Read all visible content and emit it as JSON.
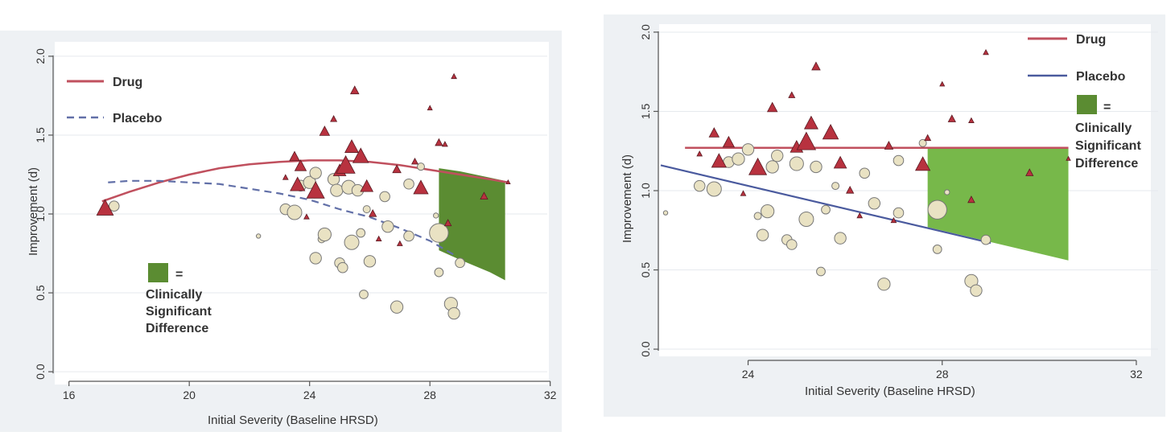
{
  "colors": {
    "drug": "#c0505e",
    "drug_marker": "#b8323f",
    "placebo_left": "#6270a8",
    "placebo_right": "#4a5a9e",
    "placebo_marker": "#e9e2c3",
    "sig_left": "#5b8c32",
    "sig_right": "#77b84a",
    "outer_bg": "#eef1f4",
    "plot_bg": "#ffffff"
  },
  "chart_data": [
    {
      "type": "scatter",
      "title": "",
      "xlabel": "Initial Severity (Baseline HRSD)",
      "ylabel": "Improvement (d)",
      "xlim": [
        15.5,
        31.5
      ],
      "ylim": [
        -0.02,
        2.02
      ],
      "xticks": [
        "16",
        "20",
        "24",
        "28",
        "32"
      ],
      "yticks": [
        "0.0",
        "0.5",
        "1.0",
        "1.5",
        "2.0"
      ],
      "grid": "horizontal",
      "legend": {
        "placement": "top-left",
        "drug_label": "Drug",
        "placebo_label": "Placebo",
        "sig_eq": "=",
        "sig_line1": "Clinically",
        "sig_line2": "Significant",
        "sig_line3": "Difference"
      },
      "drug_line": [
        [
          17.1,
          1.08
        ],
        [
          18,
          1.14
        ],
        [
          19,
          1.2
        ],
        [
          20,
          1.25
        ],
        [
          21,
          1.29
        ],
        [
          22,
          1.315
        ],
        [
          23,
          1.33
        ],
        [
          24,
          1.34
        ],
        [
          25,
          1.34
        ],
        [
          26,
          1.33
        ],
        [
          27,
          1.31
        ],
        [
          28,
          1.28
        ],
        [
          29,
          1.25
        ],
        [
          30,
          1.22
        ],
        [
          30.6,
          1.2
        ]
      ],
      "placebo_line": [
        [
          17.3,
          1.2
        ],
        [
          18,
          1.21
        ],
        [
          19,
          1.21
        ],
        [
          20,
          1.2
        ],
        [
          21,
          1.19
        ],
        [
          22,
          1.16
        ],
        [
          23,
          1.13
        ],
        [
          24,
          1.09
        ],
        [
          25,
          1.03
        ],
        [
          26,
          0.98
        ],
        [
          27,
          0.91
        ],
        [
          28,
          0.83
        ],
        [
          28.9,
          0.73
        ]
      ],
      "sig_region": [
        [
          28.3,
          1.29
        ],
        [
          29,
          1.27
        ],
        [
          30,
          1.23
        ],
        [
          30.5,
          1.21
        ],
        [
          30.5,
          0.58
        ],
        [
          30,
          0.63
        ],
        [
          29,
          0.71
        ],
        [
          28.3,
          0.77
        ]
      ],
      "drug_points": [
        {
          "x": 17.2,
          "y": 1.03,
          "s": 3.2
        },
        {
          "x": 23.2,
          "y": 1.23,
          "s": 1.0
        },
        {
          "x": 23.5,
          "y": 1.36,
          "s": 1.9
        },
        {
          "x": 23.7,
          "y": 1.3,
          "s": 2.2
        },
        {
          "x": 23.6,
          "y": 1.18,
          "s": 2.8
        },
        {
          "x": 23.9,
          "y": 0.98,
          "s": 1.0
        },
        {
          "x": 24.2,
          "y": 1.14,
          "s": 3.4
        },
        {
          "x": 24.5,
          "y": 1.52,
          "s": 1.9
        },
        {
          "x": 24.8,
          "y": 1.6,
          "s": 1.2
        },
        {
          "x": 25.0,
          "y": 1.27,
          "s": 2.4
        },
        {
          "x": 25.2,
          "y": 1.3,
          "s": 3.6
        },
        {
          "x": 25.4,
          "y": 1.42,
          "s": 2.6
        },
        {
          "x": 25.7,
          "y": 1.36,
          "s": 3.0
        },
        {
          "x": 25.9,
          "y": 1.17,
          "s": 2.4
        },
        {
          "x": 25.5,
          "y": 1.78,
          "s": 1.6
        },
        {
          "x": 26.3,
          "y": 0.84,
          "s": 1.0
        },
        {
          "x": 26.1,
          "y": 1.0,
          "s": 1.4
        },
        {
          "x": 26.9,
          "y": 1.28,
          "s": 1.6
        },
        {
          "x": 27.0,
          "y": 0.81,
          "s": 1.0
        },
        {
          "x": 27.5,
          "y": 1.33,
          "s": 1.2
        },
        {
          "x": 27.7,
          "y": 1.16,
          "s": 2.8
        },
        {
          "x": 28.0,
          "y": 1.67,
          "s": 0.9
        },
        {
          "x": 28.3,
          "y": 1.45,
          "s": 1.4
        },
        {
          "x": 28.5,
          "y": 1.44,
          "s": 1.0
        },
        {
          "x": 28.8,
          "y": 1.87,
          "s": 1.0
        },
        {
          "x": 28.6,
          "y": 0.94,
          "s": 1.3
        },
        {
          "x": 29.8,
          "y": 1.11,
          "s": 1.4
        },
        {
          "x": 30.6,
          "y": 1.2,
          "s": 0.8
        }
      ],
      "placebo_points": [
        {
          "x": 17.5,
          "y": 1.05,
          "s": 1.4
        },
        {
          "x": 22.3,
          "y": 0.86,
          "s": 0.6
        },
        {
          "x": 23.2,
          "y": 1.03,
          "s": 1.5
        },
        {
          "x": 23.5,
          "y": 1.01,
          "s": 2.0
        },
        {
          "x": 23.7,
          "y": 1.18,
          "s": 1.5
        },
        {
          "x": 24.0,
          "y": 1.2,
          "s": 1.7
        },
        {
          "x": 24.2,
          "y": 1.26,
          "s": 1.6
        },
        {
          "x": 24.4,
          "y": 0.84,
          "s": 1.0
        },
        {
          "x": 24.5,
          "y": 0.87,
          "s": 1.8
        },
        {
          "x": 24.2,
          "y": 0.72,
          "s": 1.6
        },
        {
          "x": 24.8,
          "y": 1.22,
          "s": 1.6
        },
        {
          "x": 24.9,
          "y": 1.15,
          "s": 1.7
        },
        {
          "x": 25.0,
          "y": 0.69,
          "s": 1.4
        },
        {
          "x": 25.1,
          "y": 0.66,
          "s": 1.4
        },
        {
          "x": 25.3,
          "y": 1.17,
          "s": 1.9
        },
        {
          "x": 25.4,
          "y": 0.82,
          "s": 2.0
        },
        {
          "x": 25.6,
          "y": 1.15,
          "s": 1.6
        },
        {
          "x": 25.7,
          "y": 0.88,
          "s": 1.2
        },
        {
          "x": 25.9,
          "y": 1.03,
          "s": 1.0
        },
        {
          "x": 26.0,
          "y": 0.7,
          "s": 1.6
        },
        {
          "x": 25.8,
          "y": 0.49,
          "s": 1.2
        },
        {
          "x": 26.5,
          "y": 1.11,
          "s": 1.4
        },
        {
          "x": 26.6,
          "y": 0.92,
          "s": 1.6
        },
        {
          "x": 27.3,
          "y": 0.86,
          "s": 1.4
        },
        {
          "x": 26.9,
          "y": 0.41,
          "s": 1.7
        },
        {
          "x": 27.3,
          "y": 1.19,
          "s": 1.4
        },
        {
          "x": 28.2,
          "y": 0.99,
          "s": 0.7
        },
        {
          "x": 28.3,
          "y": 0.88,
          "s": 2.6
        },
        {
          "x": 28.3,
          "y": 0.63,
          "s": 1.2
        },
        {
          "x": 28.7,
          "y": 0.43,
          "s": 1.8
        },
        {
          "x": 28.8,
          "y": 0.37,
          "s": 1.6
        },
        {
          "x": 29.0,
          "y": 0.69,
          "s": 1.3
        },
        {
          "x": 27.7,
          "y": 1.3,
          "s": 1.0
        }
      ]
    },
    {
      "type": "scatter",
      "title": "",
      "xlabel": "Initial Severity (Baseline HRSD)",
      "ylabel": "Improvement (d)",
      "xlim": [
        22.2,
        32.2
      ],
      "ylim": [
        -0.02,
        2.02
      ],
      "xticks": [
        "24",
        "28",
        "32"
      ],
      "yticks": [
        "0.0",
        "0.5",
        "1.0",
        "1.5",
        "2.0"
      ],
      "grid": "horizontal",
      "legend": {
        "placement": "top-right",
        "drug_label": "Drug",
        "placebo_label": "Placebo",
        "sig_eq": "=",
        "sig_line1": "Clinically",
        "sig_line2": "Significant",
        "sig_line3": "Difference"
      },
      "drug_line": [
        [
          22.7,
          1.27
        ],
        [
          30.6,
          1.27
        ]
      ],
      "placebo_line": [
        [
          22.2,
          1.16
        ],
        [
          29.0,
          0.67
        ]
      ],
      "sig_region": [
        [
          27.7,
          1.27
        ],
        [
          30.6,
          1.27
        ],
        [
          30.6,
          0.56
        ],
        [
          27.7,
          0.77
        ]
      ],
      "drug_points": [
        {
          "x": 23.0,
          "y": 1.23,
          "s": 1.0
        },
        {
          "x": 23.3,
          "y": 1.36,
          "s": 1.9
        },
        {
          "x": 23.6,
          "y": 1.3,
          "s": 2.2
        },
        {
          "x": 23.4,
          "y": 1.18,
          "s": 2.8
        },
        {
          "x": 23.9,
          "y": 0.98,
          "s": 1.0
        },
        {
          "x": 24.2,
          "y": 1.14,
          "s": 3.4
        },
        {
          "x": 24.5,
          "y": 1.52,
          "s": 1.9
        },
        {
          "x": 24.9,
          "y": 1.6,
          "s": 1.2
        },
        {
          "x": 25.0,
          "y": 1.27,
          "s": 2.4
        },
        {
          "x": 25.2,
          "y": 1.3,
          "s": 3.6
        },
        {
          "x": 25.3,
          "y": 1.42,
          "s": 2.6
        },
        {
          "x": 25.7,
          "y": 1.36,
          "s": 3.0
        },
        {
          "x": 25.9,
          "y": 1.17,
          "s": 2.4
        },
        {
          "x": 25.4,
          "y": 1.78,
          "s": 1.6
        },
        {
          "x": 26.3,
          "y": 0.84,
          "s": 1.0
        },
        {
          "x": 26.1,
          "y": 1.0,
          "s": 1.4
        },
        {
          "x": 26.9,
          "y": 1.28,
          "s": 1.6
        },
        {
          "x": 27.0,
          "y": 0.81,
          "s": 1.0
        },
        {
          "x": 27.7,
          "y": 1.33,
          "s": 1.2
        },
        {
          "x": 27.6,
          "y": 1.16,
          "s": 2.8
        },
        {
          "x": 28.0,
          "y": 1.67,
          "s": 0.9
        },
        {
          "x": 28.2,
          "y": 1.45,
          "s": 1.4
        },
        {
          "x": 28.6,
          "y": 1.44,
          "s": 1.0
        },
        {
          "x": 28.9,
          "y": 1.87,
          "s": 1.0
        },
        {
          "x": 28.6,
          "y": 0.94,
          "s": 1.3
        },
        {
          "x": 29.8,
          "y": 1.11,
          "s": 1.4
        },
        {
          "x": 30.6,
          "y": 1.2,
          "s": 0.8
        }
      ],
      "placebo_points": [
        {
          "x": 22.3,
          "y": 0.86,
          "s": 0.6
        },
        {
          "x": 23.0,
          "y": 1.03,
          "s": 1.5
        },
        {
          "x": 23.3,
          "y": 1.01,
          "s": 2.0
        },
        {
          "x": 23.6,
          "y": 1.18,
          "s": 1.5
        },
        {
          "x": 23.8,
          "y": 1.2,
          "s": 1.7
        },
        {
          "x": 24.0,
          "y": 1.26,
          "s": 1.6
        },
        {
          "x": 24.2,
          "y": 0.84,
          "s": 1.0
        },
        {
          "x": 24.4,
          "y": 0.87,
          "s": 1.8
        },
        {
          "x": 24.3,
          "y": 0.72,
          "s": 1.6
        },
        {
          "x": 24.6,
          "y": 1.22,
          "s": 1.6
        },
        {
          "x": 24.5,
          "y": 1.15,
          "s": 1.7
        },
        {
          "x": 24.8,
          "y": 0.69,
          "s": 1.4
        },
        {
          "x": 24.9,
          "y": 0.66,
          "s": 1.4
        },
        {
          "x": 25.0,
          "y": 1.17,
          "s": 1.9
        },
        {
          "x": 25.2,
          "y": 0.82,
          "s": 2.0
        },
        {
          "x": 25.4,
          "y": 1.15,
          "s": 1.6
        },
        {
          "x": 25.6,
          "y": 0.88,
          "s": 1.2
        },
        {
          "x": 25.8,
          "y": 1.03,
          "s": 1.0
        },
        {
          "x": 25.9,
          "y": 0.7,
          "s": 1.6
        },
        {
          "x": 25.5,
          "y": 0.49,
          "s": 1.2
        },
        {
          "x": 26.4,
          "y": 1.11,
          "s": 1.4
        },
        {
          "x": 26.6,
          "y": 0.92,
          "s": 1.6
        },
        {
          "x": 27.1,
          "y": 0.86,
          "s": 1.4
        },
        {
          "x": 26.8,
          "y": 0.41,
          "s": 1.7
        },
        {
          "x": 27.1,
          "y": 1.19,
          "s": 1.4
        },
        {
          "x": 28.1,
          "y": 0.99,
          "s": 0.7
        },
        {
          "x": 27.9,
          "y": 0.88,
          "s": 2.6
        },
        {
          "x": 27.9,
          "y": 0.63,
          "s": 1.2
        },
        {
          "x": 28.6,
          "y": 0.43,
          "s": 1.8
        },
        {
          "x": 28.7,
          "y": 0.37,
          "s": 1.6
        },
        {
          "x": 28.9,
          "y": 0.69,
          "s": 1.3
        },
        {
          "x": 27.6,
          "y": 1.3,
          "s": 1.0
        }
      ]
    }
  ]
}
